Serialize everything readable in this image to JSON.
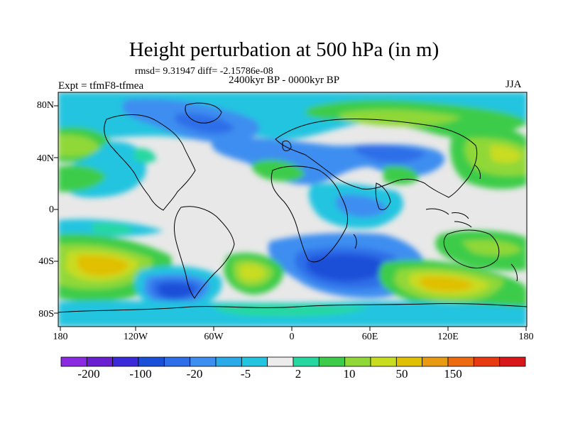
{
  "title": "Height perturbation at 500 hPa (in m)",
  "stats": "rmsd= 9.31947 diff= -2.15786e-08",
  "period": "2400kyr BP - 0000kyr BP",
  "experiment": "Expt = tfmF8-tfmea",
  "season": "JJA",
  "lat_ticks": [
    "80N",
    "40N",
    "0",
    "40S",
    "80S"
  ],
  "lon_ticks": [
    "180",
    "120W",
    "60W",
    "0",
    "60E",
    "120E",
    "180"
  ],
  "colorbar": {
    "colors": [
      "#8a2be2",
      "#6a1fd0",
      "#3a2ad8",
      "#1a4fd8",
      "#2e6ee8",
      "#3c8ef0",
      "#2aaae8",
      "#22c4e0",
      "#ececec",
      "#26d8a0",
      "#3ccc4a",
      "#90d838",
      "#c8dc20",
      "#e0c000",
      "#e89a10",
      "#ec6a10",
      "#e83a10",
      "#d81818"
    ],
    "labels": [
      "-200",
      "-100",
      "-20",
      "-5",
      "2",
      "10",
      "50",
      "150"
    ]
  },
  "colors": {
    "grey": "#e8e8e8",
    "cyan": "#22c4e0",
    "lightblue": "#3c8ef0",
    "blue": "#2e6ee8",
    "deepblue": "#1a4fd8",
    "teal": "#26d8a0",
    "green": "#3ccc4a",
    "lime": "#90d838",
    "yellow": "#c8dc20",
    "olive": "#e0c000",
    "orange": "#e89a10"
  }
}
